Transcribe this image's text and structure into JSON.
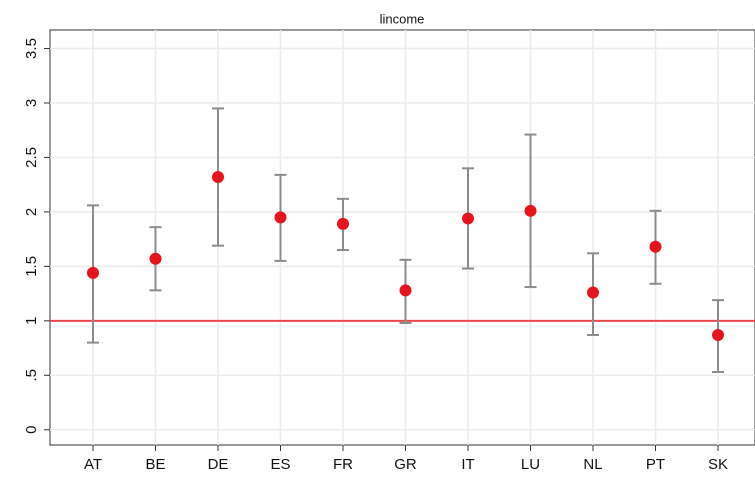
{
  "chart_data": {
    "type": "errorbar",
    "title": "lincome",
    "categories": [
      "AT",
      "BE",
      "DE",
      "ES",
      "FR",
      "GR",
      "IT",
      "LU",
      "NL",
      "PT",
      "SK"
    ],
    "series": [
      {
        "color": "#e8141b",
        "values": [
          1.44,
          1.57,
          2.32,
          1.95,
          1.89,
          1.28,
          1.94,
          2.01,
          1.26,
          1.68,
          0.87
        ],
        "lower": [
          0.8,
          1.28,
          1.69,
          1.55,
          1.65,
          0.98,
          1.48,
          1.31,
          0.87,
          1.34,
          0.53
        ],
        "upper": [
          2.06,
          1.86,
          2.95,
          2.34,
          2.12,
          1.56,
          2.4,
          2.71,
          1.62,
          2.01,
          1.19
        ],
        "error_color": "#8c8c8c"
      }
    ],
    "hline": 1,
    "hline_color": "#e8474c",
    "ylim": [
      -0.14,
      3.67
    ],
    "yticks": [
      0,
      {
        "value": 0.5,
        "label": ".5"
      },
      1,
      1.5,
      2,
      2.5,
      3,
      3.5
    ],
    "grid": true
  }
}
